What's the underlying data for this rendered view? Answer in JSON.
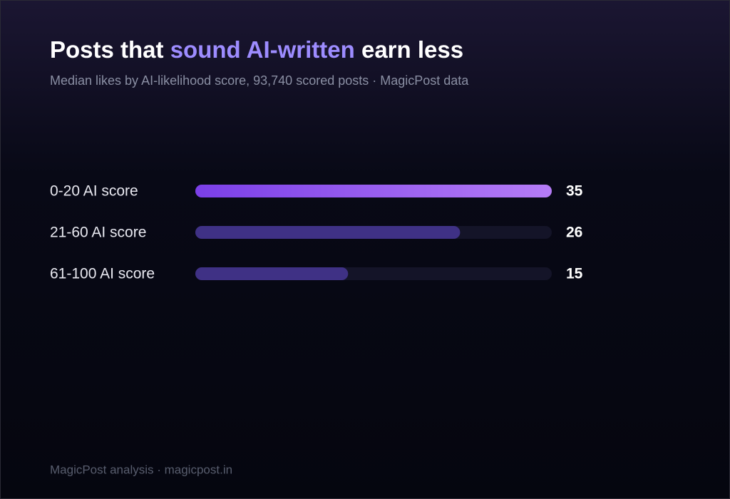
{
  "chart_data": {
    "type": "hbar",
    "title": [
      "Posts that ",
      "sound AI-written",
      " earn less"
    ],
    "subtitle": "Median likes by AI-likelihood score, 93,740 scored posts · MagicPost data",
    "footer": "MagicPost analysis · magicpost.in",
    "categories": [
      "0-20 AI score",
      "21-60 AI score",
      "61-100 AI score"
    ],
    "values": [
      35,
      26,
      15
    ],
    "colors": [
      [
        "#7b3fe8",
        "#b57cf6"
      ],
      "#3f3185",
      "#3f3185"
    ],
    "track_color": "#141428",
    "xlim": [
      0,
      35
    ]
  }
}
